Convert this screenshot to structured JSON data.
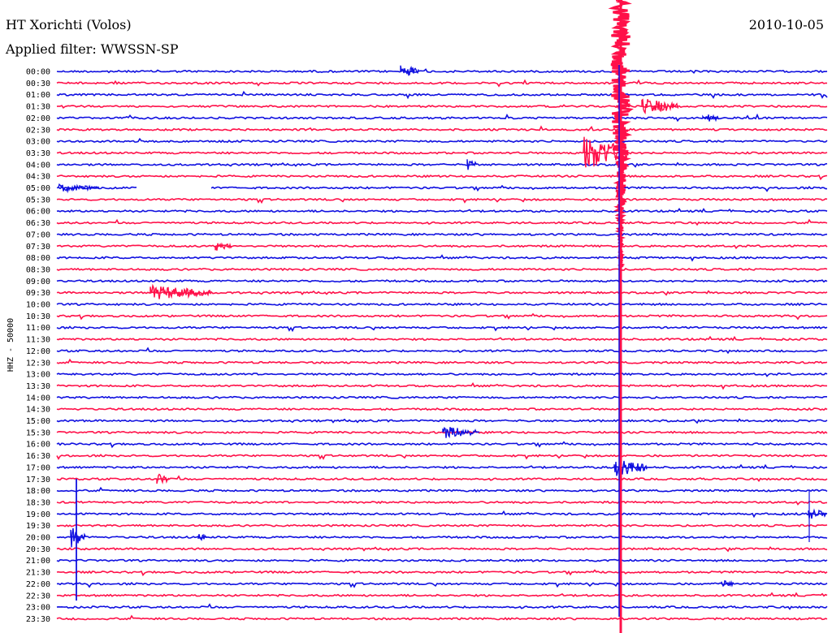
{
  "header": {
    "station": "HT Xorichti (Volos)",
    "date": "2010-10-05",
    "filter": "Applied filter: WWSSN-SP"
  },
  "chart_data": {
    "type": "line",
    "title": "HT Xorichti (Volos)",
    "subtitle": "Applied filter: WWSSN-SP",
    "ylabel": "HHZ - 50000",
    "colors": [
      "#1010e0",
      "#ff1049"
    ],
    "rows": [
      {
        "label": "00:00",
        "color": "#1010e0"
      },
      {
        "label": "00:30",
        "color": "#ff1049"
      },
      {
        "label": "01:00",
        "color": "#1010e0"
      },
      {
        "label": "01:30",
        "color": "#ff1049"
      },
      {
        "label": "02:00",
        "color": "#1010e0"
      },
      {
        "label": "02:30",
        "color": "#ff1049"
      },
      {
        "label": "03:00",
        "color": "#1010e0"
      },
      {
        "label": "03:30",
        "color": "#ff1049"
      },
      {
        "label": "04:00",
        "color": "#1010e0"
      },
      {
        "label": "04:30",
        "color": "#ff1049"
      },
      {
        "label": "05:00",
        "color": "#1010e0"
      },
      {
        "label": "05:30",
        "color": "#ff1049"
      },
      {
        "label": "06:00",
        "color": "#1010e0"
      },
      {
        "label": "06:30",
        "color": "#ff1049"
      },
      {
        "label": "07:00",
        "color": "#1010e0"
      },
      {
        "label": "07:30",
        "color": "#ff1049"
      },
      {
        "label": "08:00",
        "color": "#1010e0"
      },
      {
        "label": "08:30",
        "color": "#ff1049"
      },
      {
        "label": "09:00",
        "color": "#1010e0"
      },
      {
        "label": "09:30",
        "color": "#ff1049"
      },
      {
        "label": "10:00",
        "color": "#1010e0"
      },
      {
        "label": "10:30",
        "color": "#ff1049"
      },
      {
        "label": "11:00",
        "color": "#1010e0"
      },
      {
        "label": "11:30",
        "color": "#ff1049"
      },
      {
        "label": "12:00",
        "color": "#1010e0"
      },
      {
        "label": "12:30",
        "color": "#ff1049"
      },
      {
        "label": "13:00",
        "color": "#1010e0"
      },
      {
        "label": "13:30",
        "color": "#ff1049"
      },
      {
        "label": "14:00",
        "color": "#1010e0"
      },
      {
        "label": "14:30",
        "color": "#ff1049"
      },
      {
        "label": "15:00",
        "color": "#1010e0"
      },
      {
        "label": "15:30",
        "color": "#ff1049"
      },
      {
        "label": "16:00",
        "color": "#1010e0"
      },
      {
        "label": "16:30",
        "color": "#ff1049"
      },
      {
        "label": "17:00",
        "color": "#1010e0"
      },
      {
        "label": "17:30",
        "color": "#ff1049"
      },
      {
        "label": "18:00",
        "color": "#1010e0"
      },
      {
        "label": "18:30",
        "color": "#ff1049"
      },
      {
        "label": "19:00",
        "color": "#1010e0"
      },
      {
        "label": "19:30",
        "color": "#ff1049"
      },
      {
        "label": "20:00",
        "color": "#1010e0"
      },
      {
        "label": "20:30",
        "color": "#ff1049"
      },
      {
        "label": "21:00",
        "color": "#1010e0"
      },
      {
        "label": "21:30",
        "color": "#ff1049"
      },
      {
        "label": "22:00",
        "color": "#1010e0"
      },
      {
        "label": "22:30",
        "color": "#ff1049"
      },
      {
        "label": "23:00",
        "color": "#1010e0"
      },
      {
        "label": "23:30",
        "color": "#ff1049"
      }
    ]
  }
}
